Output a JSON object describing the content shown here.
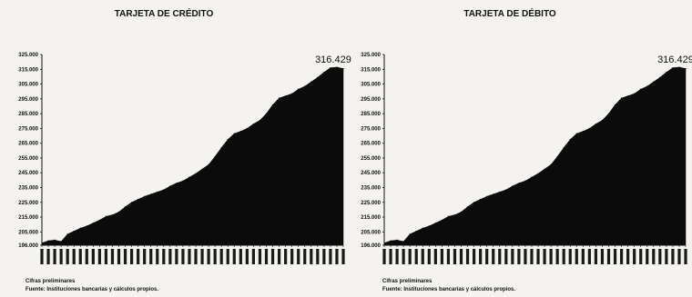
{
  "chart_data": [
    {
      "type": "area",
      "title": "TARJETA DE CRÉDITO",
      "ylim": [
        196000,
        325000
      ],
      "yticks": [
        "196.000",
        "205.000",
        "215.000",
        "225.000",
        "235.000",
        "245.000",
        "255.000",
        "265.000",
        "275.000",
        "285.000",
        "295.000",
        "305.000",
        "315.000",
        "325.000"
      ],
      "ytick_values": [
        196000,
        205000,
        215000,
        225000,
        235000,
        245000,
        255000,
        265000,
        275000,
        285000,
        295000,
        305000,
        315000,
        325000
      ],
      "values": [
        197500,
        199000,
        199500,
        198500,
        203500,
        205500,
        207500,
        209000,
        211000,
        213000,
        215500,
        216500,
        218500,
        222000,
        225000,
        227000,
        229000,
        230500,
        232000,
        233500,
        236000,
        238000,
        239500,
        242000,
        244500,
        247500,
        250500,
        256000,
        262000,
        267500,
        271500,
        273000,
        275000,
        278000,
        280500,
        285000,
        291000,
        295500,
        297000,
        298500,
        301500,
        303500,
        306500,
        309500,
        313000,
        316000,
        316429,
        315500
      ],
      "annotation": "316.429",
      "fill_color": "#0b0b0b",
      "notes": [
        "Cifras preliminares",
        "Fuente: Instituciones bancarias y cálculos propios."
      ]
    },
    {
      "type": "area",
      "title": "TARJETA DE DÉBITO",
      "ylim": [
        196000,
        325000
      ],
      "yticks": [
        "196.000",
        "205.000",
        "215.000",
        "225.000",
        "235.000",
        "245.000",
        "255.000",
        "265.000",
        "275.000",
        "285.000",
        "295.000",
        "305.000",
        "315.000",
        "325.000"
      ],
      "ytick_values": [
        196000,
        205000,
        215000,
        225000,
        235000,
        245000,
        255000,
        265000,
        275000,
        285000,
        295000,
        305000,
        315000,
        325000
      ],
      "values": [
        197500,
        199000,
        199500,
        198500,
        203500,
        205500,
        207500,
        209000,
        211000,
        213000,
        215500,
        216500,
        218500,
        222000,
        225000,
        227000,
        229000,
        230500,
        232000,
        233500,
        236000,
        238000,
        239500,
        242000,
        244500,
        247500,
        250500,
        256000,
        262000,
        267500,
        271500,
        273000,
        275000,
        278000,
        280500,
        285000,
        291000,
        295500,
        297000,
        298500,
        301500,
        303500,
        306500,
        309500,
        313000,
        316000,
        316429,
        315500
      ],
      "annotation": "316.429",
      "fill_color": "#0b0b0b",
      "notes": [
        "Cifras preliminares",
        "Fuente: Instituciones bancarias y cálculos propios."
      ]
    }
  ]
}
